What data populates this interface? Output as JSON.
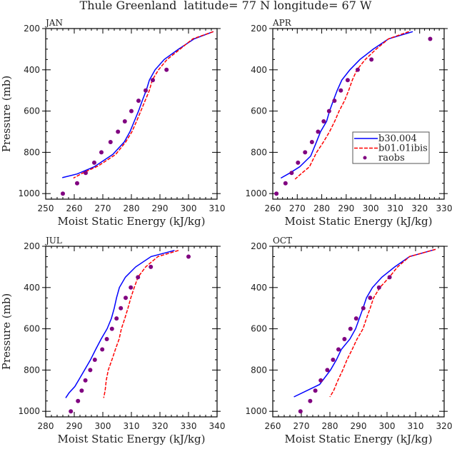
{
  "title": "Thule Greenland  latitude= 77 N longitude= 67 W",
  "chart_data": [
    {
      "type": "line",
      "panel": "JAN",
      "xlabel": "Moist Static Energy (kJ/kg)",
      "ylabel": "Pressure (mb)",
      "xlim": [
        250,
        310
      ],
      "ylim": [
        200,
        1027
      ],
      "y_inverted": true,
      "xticks": [
        250,
        260,
        270,
        280,
        290,
        300,
        310
      ],
      "yticks": [
        200,
        400,
        600,
        800,
        1000
      ],
      "series": [
        {
          "name": "b30.004",
          "style": "solid",
          "color": "#0000ff",
          "points": [
            [
              308.7,
              215
            ],
            [
              302,
              250
            ],
            [
              296.5,
              300
            ],
            [
              291.5,
              350
            ],
            [
              288.3,
              400
            ],
            [
              286.3,
              450
            ],
            [
              285.2,
              500
            ],
            [
              283.8,
              550
            ],
            [
              282.5,
              600
            ],
            [
              281,
              650
            ],
            [
              279.5,
              700
            ],
            [
              277.5,
              750
            ],
            [
              273.5,
              810
            ],
            [
              267,
              870
            ],
            [
              261,
              905
            ],
            [
              255.8,
              923
            ]
          ]
        },
        {
          "name": "b01.01ibis",
          "style": "dashed",
          "color": "#ff0000",
          "points": [
            [
              308.7,
              215
            ],
            [
              301.5,
              250
            ],
            [
              297,
              300
            ],
            [
              292.5,
              350
            ],
            [
              289.5,
              400
            ],
            [
              287.3,
              450
            ],
            [
              286.3,
              500
            ],
            [
              284.8,
              550
            ],
            [
              283.3,
              600
            ],
            [
              281.8,
              650
            ],
            [
              280.2,
              700
            ],
            [
              278,
              750
            ],
            [
              274.5,
              810
            ],
            [
              268.5,
              865
            ],
            [
              263,
              900
            ],
            [
              259.7,
              925
            ]
          ]
        },
        {
          "name": "raobs",
          "style": "marker",
          "color": "#800080",
          "points": [
            [
              292.3,
              400
            ],
            [
              287.5,
              450
            ],
            [
              285,
              500
            ],
            [
              282.5,
              550
            ],
            [
              280,
              600
            ],
            [
              277.7,
              650
            ],
            [
              275.3,
              700
            ],
            [
              272.7,
              750
            ],
            [
              269.5,
              800
            ],
            [
              267,
              850
            ],
            [
              264,
              900
            ],
            [
              261,
              950
            ],
            [
              256,
              1000
            ]
          ]
        }
      ]
    },
    {
      "type": "line",
      "panel": "APR",
      "xlabel": "Moist Static Energy (kJ/kg)",
      "ylabel": "",
      "xlim": [
        260,
        330
      ],
      "ylim": [
        200,
        1027
      ],
      "y_inverted": true,
      "xticks": [
        260,
        270,
        280,
        290,
        300,
        310,
        320,
        330
      ],
      "yticks": [
        200,
        400,
        600,
        800,
        1000
      ],
      "legend": {
        "position": "right-center",
        "entries": [
          "b30.004",
          "b01.01ibis",
          "raobs"
        ]
      },
      "series": [
        {
          "name": "b30.004",
          "style": "solid",
          "color": "#0000ff",
          "points": [
            [
              317.2,
              215
            ],
            [
              307.3,
              250
            ],
            [
              301,
              300
            ],
            [
              295.6,
              350
            ],
            [
              291.5,
              400
            ],
            [
              288.2,
              450
            ],
            [
              286.3,
              500
            ],
            [
              284.7,
              550
            ],
            [
              283.2,
              600
            ],
            [
              282,
              650
            ],
            [
              279.5,
              700
            ],
            [
              277.5,
              760
            ],
            [
              275.5,
              818
            ],
            [
              271,
              870
            ],
            [
              267,
              900
            ],
            [
              263.3,
              925
            ]
          ]
        },
        {
          "name": "b01.01ibis",
          "style": "dashed",
          "color": "#ff0000",
          "points": [
            [
              315.6,
              215
            ],
            [
              307.3,
              250
            ],
            [
              302.2,
              300
            ],
            [
              297.8,
              350
            ],
            [
              294.4,
              400
            ],
            [
              292.5,
              450
            ],
            [
              291,
              500
            ],
            [
              289.3,
              550
            ],
            [
              287.1,
              600
            ],
            [
              285.3,
              650
            ],
            [
              283.2,
              700
            ],
            [
              280.7,
              750
            ],
            [
              277.9,
              800
            ],
            [
              275,
              870
            ],
            [
              271.5,
              905
            ],
            [
              269.1,
              930
            ]
          ]
        },
        {
          "name": "raobs",
          "style": "marker",
          "color": "#800080",
          "points": [
            [
              324.3,
              250
            ],
            [
              300.3,
              350
            ],
            [
              294.7,
              400
            ],
            [
              290.6,
              450
            ],
            [
              287.8,
              500
            ],
            [
              285.2,
              550
            ],
            [
              283,
              600
            ],
            [
              280.8,
              650
            ],
            [
              278.5,
              700
            ],
            [
              276,
              750
            ],
            [
              273.2,
              800
            ],
            [
              270.3,
              850
            ],
            [
              267.7,
              900
            ],
            [
              265.2,
              950
            ],
            [
              261.5,
              1000
            ]
          ]
        }
      ]
    },
    {
      "type": "line",
      "panel": "JUL",
      "xlabel": "Moist Static Energy (kJ/kg)",
      "ylabel": "Pressure (mb)",
      "xlim": [
        280,
        340
      ],
      "ylim": [
        200,
        1027
      ],
      "y_inverted": true,
      "xticks": [
        280,
        290,
        300,
        310,
        320,
        330,
        340
      ],
      "yticks": [
        200,
        400,
        600,
        800,
        1000
      ],
      "series": [
        {
          "name": "b30.004",
          "style": "solid",
          "color": "#0000ff",
          "points": [
            [
              325.1,
              220
            ],
            [
              316.9,
              250
            ],
            [
              311.5,
              300
            ],
            [
              307.9,
              350
            ],
            [
              305.8,
              400
            ],
            [
              304.8,
              450
            ],
            [
              304,
              500
            ],
            [
              303,
              550
            ],
            [
              301.5,
              600
            ],
            [
              299.4,
              650
            ],
            [
              297.5,
              700
            ],
            [
              295.7,
              750
            ],
            [
              293.6,
              800
            ],
            [
              291.5,
              850
            ],
            [
              290.2,
              880
            ],
            [
              288.2,
              910
            ],
            [
              287,
              935
            ]
          ]
        },
        {
          "name": "b01.01ibis",
          "style": "dashed",
          "color": "#ff0000",
          "points": [
            [
              326.5,
              220
            ],
            [
              319.3,
              250
            ],
            [
              315,
              300
            ],
            [
              312.3,
              350
            ],
            [
              311,
              400
            ],
            [
              309.8,
              450
            ],
            [
              308.8,
              500
            ],
            [
              307.7,
              550
            ],
            [
              306.5,
              600
            ],
            [
              305.7,
              650
            ],
            [
              304.4,
              700
            ],
            [
              303.2,
              750
            ],
            [
              301.9,
              800
            ],
            [
              301.2,
              850
            ],
            [
              300.8,
              900
            ],
            [
              300.3,
              935
            ]
          ]
        },
        {
          "name": "raobs",
          "style": "marker",
          "color": "#800080",
          "points": [
            [
              330,
              250
            ],
            [
              316.8,
              300
            ],
            [
              312.3,
              350
            ],
            [
              309.8,
              400
            ],
            [
              308,
              450
            ],
            [
              306.3,
              500
            ],
            [
              304.8,
              550
            ],
            [
              303.2,
              600
            ],
            [
              301.4,
              650
            ],
            [
              299.8,
              700
            ],
            [
              297.2,
              750
            ],
            [
              295.6,
              800
            ],
            [
              293.9,
              850
            ],
            [
              292.6,
              900
            ],
            [
              291.3,
              950
            ],
            [
              288.8,
              1000
            ]
          ]
        }
      ]
    },
    {
      "type": "line",
      "panel": "OCT",
      "xlabel": "Moist Static Energy (kJ/kg)",
      "ylabel": "",
      "xlim": [
        260,
        320
      ],
      "ylim": [
        200,
        1027
      ],
      "y_inverted": true,
      "xticks": [
        260,
        270,
        280,
        290,
        300,
        310,
        320
      ],
      "yticks": [
        200,
        400,
        600,
        800,
        1000
      ],
      "series": [
        {
          "name": "b30.004",
          "style": "solid",
          "color": "#0000ff",
          "points": [
            [
              317,
              215
            ],
            [
              307.9,
              250
            ],
            [
              302.7,
              300
            ],
            [
              298.2,
              350
            ],
            [
              294.9,
              400
            ],
            [
              292.8,
              450
            ],
            [
              291.6,
              500
            ],
            [
              290.3,
              550
            ],
            [
              289,
              600
            ],
            [
              287,
              650
            ],
            [
              284,
              700
            ],
            [
              282.3,
              750
            ],
            [
              280.2,
              800
            ],
            [
              276.4,
              870
            ],
            [
              267.4,
              930
            ]
          ]
        },
        {
          "name": "b01.01ibis",
          "style": "dashed",
          "color": "#ff0000",
          "points": [
            [
              317,
              215
            ],
            [
              307.9,
              250
            ],
            [
              303.7,
              300
            ],
            [
              300.8,
              350
            ],
            [
              297.5,
              400
            ],
            [
              295.3,
              450
            ],
            [
              294.1,
              500
            ],
            [
              292.8,
              550
            ],
            [
              291.6,
              600
            ],
            [
              289.5,
              650
            ],
            [
              287.8,
              700
            ],
            [
              286,
              750
            ],
            [
              284.5,
              800
            ],
            [
              282.8,
              850
            ],
            [
              281.3,
              900
            ],
            [
              280,
              930
            ]
          ]
        },
        {
          "name": "raobs",
          "style": "marker",
          "color": "#800080",
          "points": [
            [
              300.9,
              350
            ],
            [
              297.2,
              400
            ],
            [
              294.1,
              450
            ],
            [
              291.7,
              500
            ],
            [
              289.2,
              550
            ],
            [
              287.2,
              600
            ],
            [
              285.1,
              650
            ],
            [
              283,
              700
            ],
            [
              281.1,
              750
            ],
            [
              279.1,
              800
            ],
            [
              276.8,
              850
            ],
            [
              274.9,
              900
            ],
            [
              273.1,
              950
            ],
            [
              269.7,
              1000
            ]
          ]
        }
      ]
    }
  ]
}
